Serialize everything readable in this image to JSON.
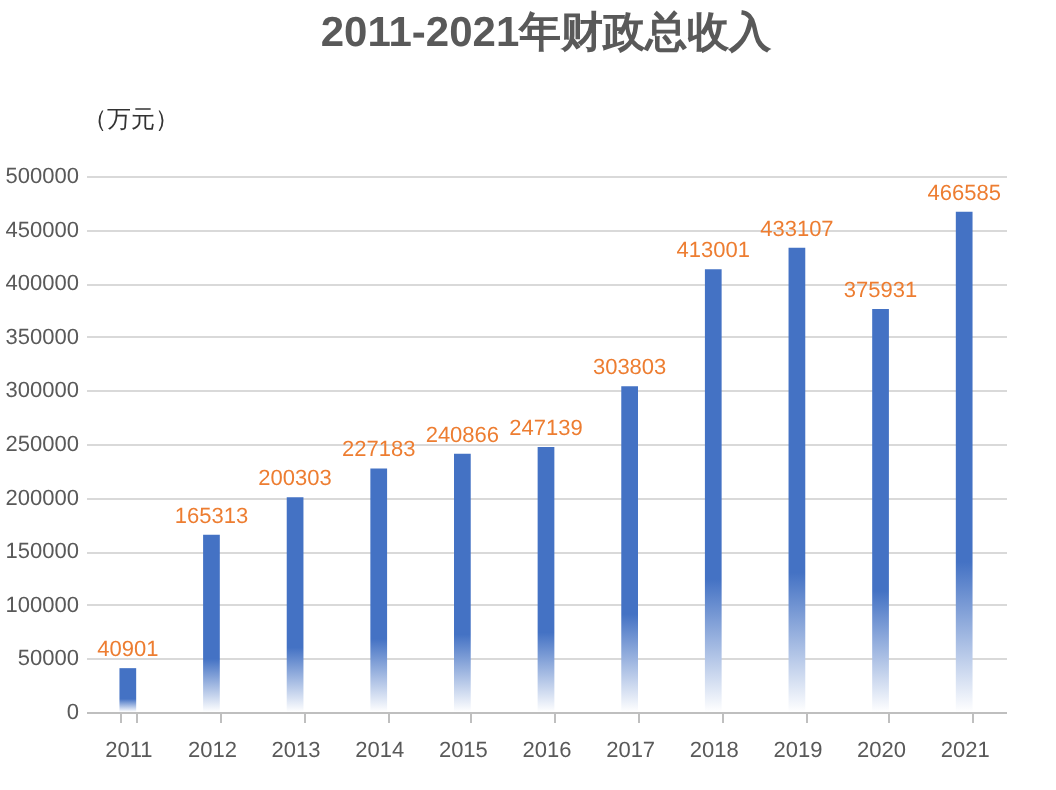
{
  "chart_data": {
    "type": "bar",
    "title": "2011-2021年财政总收入",
    "ylabel": "（万元）",
    "categories": [
      "2011",
      "2012",
      "2013",
      "2014",
      "2015",
      "2016",
      "2017",
      "2018",
      "2019",
      "2020",
      "2021"
    ],
    "values": [
      40901,
      165313,
      200303,
      227183,
      240866,
      247139,
      303803,
      413001,
      433107,
      375931,
      466585
    ],
    "color": "#4472c4",
    "ylim": [
      0,
      500000
    ],
    "yticks": [
      0,
      50000,
      100000,
      150000,
      200000,
      250000,
      300000,
      350000,
      400000,
      450000,
      500000
    ],
    "grid": "y",
    "data_labels": true
  }
}
